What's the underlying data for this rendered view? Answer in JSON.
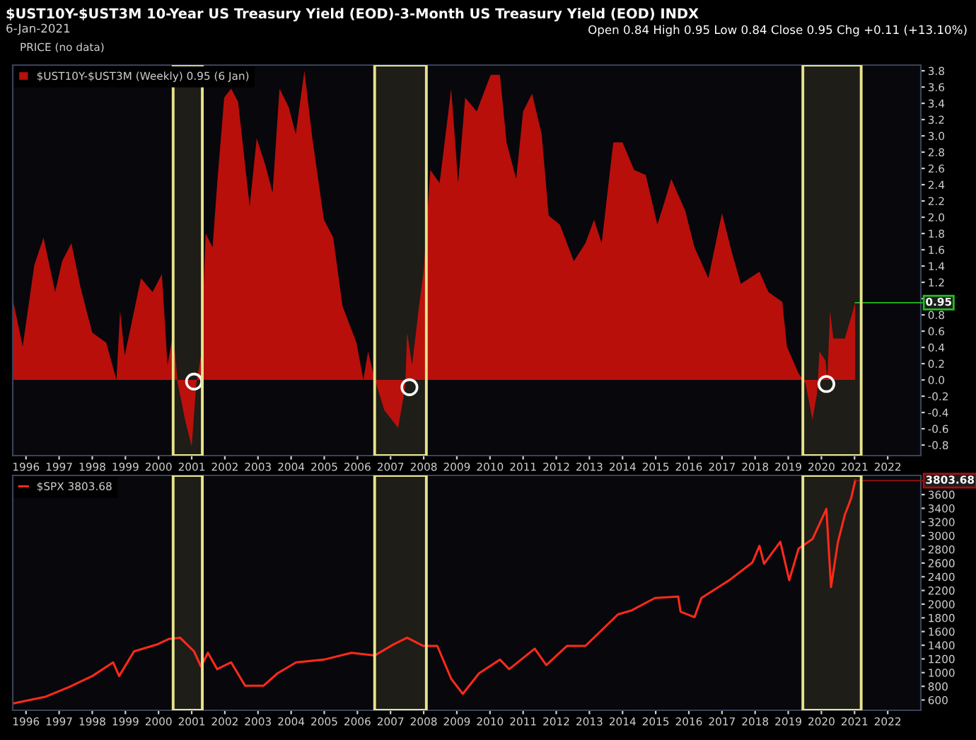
{
  "chart_data": [
    {
      "type": "area",
      "title": "$UST10Y-$UST3M 10-Year US Treasury Yield (EOD)-3-Month US Treasury Yield (EOD) INDX",
      "subtitle": "6-Jan-2021",
      "annotations": [
        "Open 0.84 High 0.95 Low 0.84 Close 0.95 Chg +0.11 (+13.10%)",
        "PRICE (no data)",
        {
          "text": "0.95",
          "x": 2021.02,
          "y": 0.95
        }
      ],
      "xlim": [
        1995.6,
        2023.0
      ],
      "xticks": [
        1996,
        1997,
        1998,
        1999,
        2000,
        2001,
        2002,
        2003,
        2004,
        2005,
        2006,
        2007,
        2008,
        2009,
        2010,
        2011,
        2012,
        2013,
        2014,
        2015,
        2016,
        2017,
        2018,
        2019,
        2020,
        2021,
        2022
      ],
      "ylim": [
        -0.93,
        3.87
      ],
      "yticks": [
        -0.8,
        -0.6,
        -0.4,
        -0.2,
        {
          "value": 0,
          "label": "0.0"
        },
        0.2,
        0.4,
        0.6,
        0.8,
        {
          "value": 1,
          "label": null
        },
        1.2,
        1.4,
        1.6,
        1.8,
        {
          "value": 2,
          "label": "2.0"
        },
        2.2,
        2.4,
        2.6,
        2.8,
        {
          "value": 3,
          "label": "3.0"
        },
        3.2,
        3.4,
        3.6,
        3.8
      ],
      "legend": "top left",
      "bands": [
        {
          "axis": "x",
          "from": 2000.44,
          "to": 2001.32,
          "color": "#e8e38a"
        },
        {
          "axis": "x",
          "from": 2006.52,
          "to": 2008.08,
          "color": "#e8e38a"
        },
        {
          "axis": "x",
          "from": 2019.44,
          "to": 2021.2,
          "color": "#e8e38a"
        }
      ],
      "series": [
        {
          "name": "$UST10Y-$UST3M (Weekly) 0.95 (6 Jan)",
          "color": "#c8100c",
          "x": [
            1995.62,
            1995.9,
            1996.25,
            1996.53,
            1996.88,
            1997.09,
            1997.37,
            1997.65,
            1998.0,
            1998.42,
            1998.73,
            1998.84,
            1998.98,
            1999.47,
            1999.82,
            2000.1,
            2000.27,
            2000.44,
            2000.58,
            2000.8,
            2001.0,
            2001.14,
            2001.28,
            2001.42,
            2001.63,
            2001.77,
            2001.98,
            2002.19,
            2002.4,
            2002.75,
            2002.96,
            2003.23,
            2003.44,
            2003.65,
            2003.93,
            2004.14,
            2004.4,
            2004.64,
            2004.99,
            2005.27,
            2005.55,
            2005.97,
            2006.18,
            2006.32,
            2006.53,
            2006.81,
            2007.23,
            2007.44,
            2007.5,
            2007.65,
            2007.86,
            2008.0,
            2008.2,
            2008.48,
            2008.83,
            2009.04,
            2009.25,
            2009.6,
            2010.02,
            2010.3,
            2010.5,
            2010.79,
            2011.0,
            2011.27,
            2011.56,
            2011.77,
            2012.11,
            2012.53,
            2012.88,
            2013.14,
            2013.37,
            2013.72,
            2014.0,
            2014.35,
            2014.7,
            2015.05,
            2015.26,
            2015.47,
            2015.89,
            2016.17,
            2016.59,
            2017.0,
            2017.29,
            2017.57,
            2018.13,
            2018.4,
            2018.82,
            2018.96,
            2019.31,
            2019.52,
            2019.73,
            2019.87,
            2019.94,
            2020.12,
            2020.18,
            2020.26,
            2020.36,
            2020.71,
            2021.02
          ],
          "values": [
            0.96,
            0.41,
            1.41,
            1.75,
            1.08,
            1.46,
            1.68,
            1.13,
            0.58,
            0.46,
            0.0,
            0.85,
            0.3,
            1.25,
            1.08,
            1.3,
            0.18,
            0.58,
            -0.04,
            -0.49,
            -0.82,
            -0.04,
            0.3,
            1.8,
            1.63,
            2.42,
            3.47,
            3.58,
            3.42,
            2.13,
            2.97,
            2.63,
            2.3,
            3.58,
            3.35,
            3.02,
            3.8,
            2.97,
            1.97,
            1.75,
            0.91,
            0.46,
            0.0,
            0.35,
            0.0,
            -0.37,
            -0.59,
            -0.09,
            0.58,
            0.18,
            0.91,
            1.35,
            2.58,
            2.42,
            3.58,
            2.42,
            3.47,
            3.3,
            3.75,
            3.75,
            2.92,
            2.47,
            3.3,
            3.52,
            3.02,
            2.02,
            1.91,
            1.46,
            1.68,
            1.97,
            1.68,
            2.92,
            2.92,
            2.58,
            2.52,
            1.91,
            2.18,
            2.47,
            2.08,
            1.63,
            1.25,
            2.05,
            1.58,
            1.18,
            1.33,
            1.08,
            0.96,
            0.41,
            0.08,
            -0.04,
            -0.49,
            -0.16,
            0.35,
            0.24,
            0.0,
            0.85,
            0.51,
            0.51,
            0.95
          ]
        },
        {
          "type": "scatter",
          "color": "#ffffff",
          "marker": "circle",
          "x": [
            2001.07,
            2007.57,
            2020.15
          ],
          "values": [
            -0.02,
            -0.09,
            -0.05
          ]
        }
      ]
    },
    {
      "type": "line",
      "annotations": [
        {
          "text": "3803.68",
          "x": 2021.02,
          "y": 3803.68
        }
      ],
      "xlim": [
        1995.6,
        2023.0
      ],
      "xticks": [
        1996,
        1997,
        1998,
        1999,
        2000,
        2001,
        2002,
        2003,
        2004,
        2005,
        2006,
        2007,
        2008,
        2009,
        2010,
        2011,
        2012,
        2013,
        2014,
        2015,
        2016,
        2017,
        2018,
        2019,
        2020,
        2021,
        2022
      ],
      "ylim": [
        450,
        3880
      ],
      "yticks": [
        600,
        800,
        1000,
        1200,
        1400,
        1600,
        1800,
        2000,
        2200,
        2400,
        2600,
        2800,
        3000,
        3200,
        3400,
        3600
      ],
      "legend": "top left",
      "bands": [
        {
          "axis": "x",
          "from": 2000.44,
          "to": 2001.32,
          "color": "#e8e38a"
        },
        {
          "axis": "x",
          "from": 2006.52,
          "to": 2008.08,
          "color": "#e8e38a"
        },
        {
          "axis": "x",
          "from": 2019.44,
          "to": 2021.2,
          "color": "#e8e38a"
        }
      ],
      "series": [
        {
          "name": "$SPX 3803.68",
          "color": "#ff2a1a",
          "x": [
            1995.62,
            1996.6,
            1997.3,
            1998.0,
            1998.63,
            1998.81,
            1999.26,
            1999.95,
            2000.3,
            2000.65,
            2001.07,
            2001.28,
            2001.49,
            2001.77,
            2002.19,
            2002.61,
            2003.17,
            2003.59,
            2004.15,
            2004.99,
            2005.82,
            2006.52,
            2007.08,
            2007.5,
            2007.99,
            2008.41,
            2008.83,
            2009.18,
            2009.67,
            2010.3,
            2010.58,
            2011.35,
            2011.7,
            2012.32,
            2012.88,
            2013.86,
            2014.28,
            2014.98,
            2015.68,
            2015.75,
            2016.17,
            2016.38,
            2017.22,
            2017.92,
            2018.13,
            2018.27,
            2018.76,
            2019.03,
            2019.31,
            2019.73,
            2020.15,
            2020.29,
            2020.5,
            2020.71,
            2020.9,
            2021.02
          ],
          "values": [
            550,
            650,
            790,
            950,
            1150,
            950,
            1310,
            1410,
            1490,
            1510,
            1310,
            1090,
            1290,
            1050,
            1150,
            810,
            810,
            990,
            1150,
            1190,
            1290,
            1250,
            1410,
            1510,
            1390,
            1390,
            910,
            690,
            990,
            1190,
            1050,
            1350,
            1110,
            1390,
            1390,
            1850,
            1910,
            2090,
            2110,
            1890,
            1810,
            2090,
            2350,
            2610,
            2850,
            2590,
            2910,
            2350,
            2810,
            2950,
            3390,
            2250,
            2910,
            3310,
            3550,
            3803.68
          ]
        }
      ]
    }
  ]
}
